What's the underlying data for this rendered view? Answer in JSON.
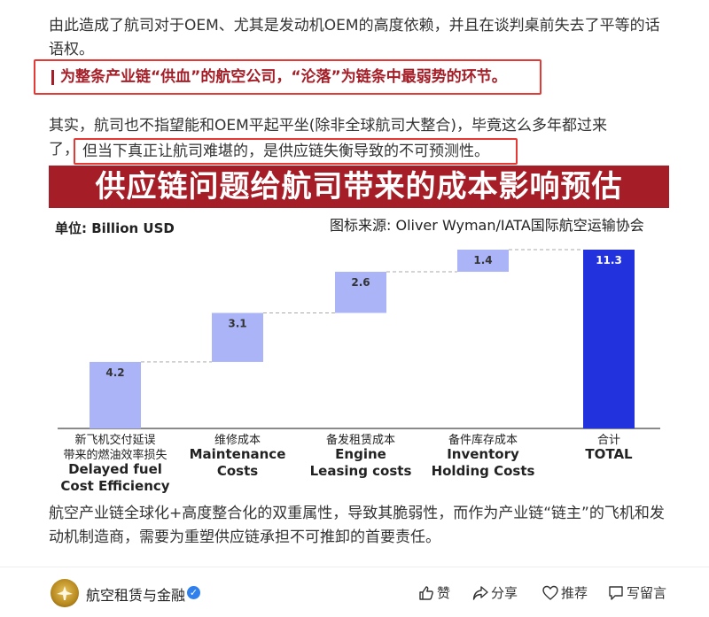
{
  "article": {
    "p1": "由此造成了航司对于OEM、尤其是发动机OEM的高度依赖，并且在谈判桌前失去了平等的话语权。",
    "highlight1": "为整条产业链“供血”的航空公司，“沦落”为链条中最弱势的环节。",
    "p2a": "其实，航司也不指望能和OEM平起平坐(除非全球航司大整合)，毕竟这么多年都过来",
    "p2b_pre": "了，",
    "highlight2": "但当下真正让航司难堪的，是供应链失衡导致的不可预测性。",
    "p3": "航空产业链全球化+高度整合化的双重属性，导致其脆弱性，而作为产业链“链主”的飞机和发动机制造商，需要为重塑供应链承担不可推卸的首要责任。"
  },
  "chart_header": {
    "title": "供应链问题给航司带来的成本影响预估",
    "unit": "单位: Billion USD",
    "source": "图标来源: Oliver Wyman/IATA国际航空运输协会"
  },
  "chart_data": {
    "type": "bar",
    "subtype": "waterfall",
    "categories": [
      [
        "新飞机交付延误",
        "带来的燃油效率损失",
        "Delayed fuel",
        "Cost Efficiency"
      ],
      [
        "维修成本",
        "Maintenance",
        "Costs"
      ],
      [
        "备发租赁成本",
        "Engine",
        "Leasing costs"
      ],
      [
        "备件库存成本",
        "Inventory",
        "Holding Costs"
      ],
      [
        "合计",
        "TOTAL"
      ]
    ],
    "values": [
      4.2,
      3.1,
      2.6,
      1.4,
      11.3
    ],
    "labels": [
      "4.2",
      "3.1",
      "2.6",
      "1.4",
      "11.3"
    ],
    "is_total": [
      false,
      false,
      false,
      false,
      true
    ],
    "ylim": [
      0,
      11.3
    ],
    "colors": {
      "step": "#aab4f7",
      "total": "#2233dd"
    }
  },
  "footer": {
    "account": "航空租赁与金融",
    "like": "赞",
    "share": "分享",
    "recommend": "推荐",
    "comment": "写留言"
  }
}
